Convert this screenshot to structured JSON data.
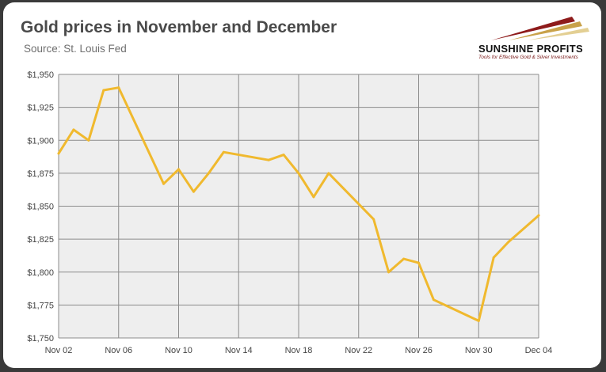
{
  "header": {
    "title": "Gold prices in November and December",
    "subtitle": "Source: St. Louis Fed"
  },
  "logo": {
    "name": "SUNSHINE PROFITS",
    "tagline": "Tools for Effective Gold & Silver Investments",
    "colors": [
      "#8e1b1b",
      "#c9a24a",
      "#e3cf93"
    ]
  },
  "chart_data": {
    "type": "line",
    "title": "Gold prices in November and December",
    "subtitle": "Source: St. Louis Fed",
    "xlabel": "",
    "ylabel": "",
    "x_tick_labels": [
      "Nov 02",
      "Nov 06",
      "Nov 10",
      "Nov 14",
      "Nov 18",
      "Nov 22",
      "Nov 26",
      "Nov 30",
      "Dec 04"
    ],
    "y_tick_labels": [
      "$1,750",
      "$1,775",
      "$1,800",
      "$1,825",
      "$1,850",
      "$1,875",
      "$1,900",
      "$1,925",
      "$1,950"
    ],
    "ylim": [
      1750,
      1950
    ],
    "xlim": [
      "2020-11-02",
      "2020-12-04"
    ],
    "grid": true,
    "line_color": "#f0b92e",
    "plot_background": "#eeeeee",
    "series": [
      {
        "points": [
          {
            "x": "2020-11-02",
            "y": 1890
          },
          {
            "x": "2020-11-03",
            "y": 1908
          },
          {
            "x": "2020-11-04",
            "y": 1900
          },
          {
            "x": "2020-11-05",
            "y": 1938
          },
          {
            "x": "2020-11-06",
            "y": 1940
          },
          {
            "x": "2020-11-09",
            "y": 1867
          },
          {
            "x": "2020-11-10",
            "y": 1878
          },
          {
            "x": "2020-11-11",
            "y": 1861
          },
          {
            "x": "2020-11-12",
            "y": 1875
          },
          {
            "x": "2020-11-13",
            "y": 1891
          },
          {
            "x": "2020-11-16",
            "y": 1885
          },
          {
            "x": "2020-11-17",
            "y": 1889
          },
          {
            "x": "2020-11-18",
            "y": 1875
          },
          {
            "x": "2020-11-19",
            "y": 1857
          },
          {
            "x": "2020-11-20",
            "y": 1875
          },
          {
            "x": "2020-11-23",
            "y": 1840
          },
          {
            "x": "2020-11-24",
            "y": 1800
          },
          {
            "x": "2020-11-25",
            "y": 1810
          },
          {
            "x": "2020-11-26",
            "y": 1807
          },
          {
            "x": "2020-11-27",
            "y": 1779
          },
          {
            "x": "2020-11-30",
            "y": 1763
          },
          {
            "x": "2020-12-01",
            "y": 1811
          },
          {
            "x": "2020-12-02",
            "y": 1823
          },
          {
            "x": "2020-12-04",
            "y": 1843
          }
        ]
      }
    ]
  }
}
